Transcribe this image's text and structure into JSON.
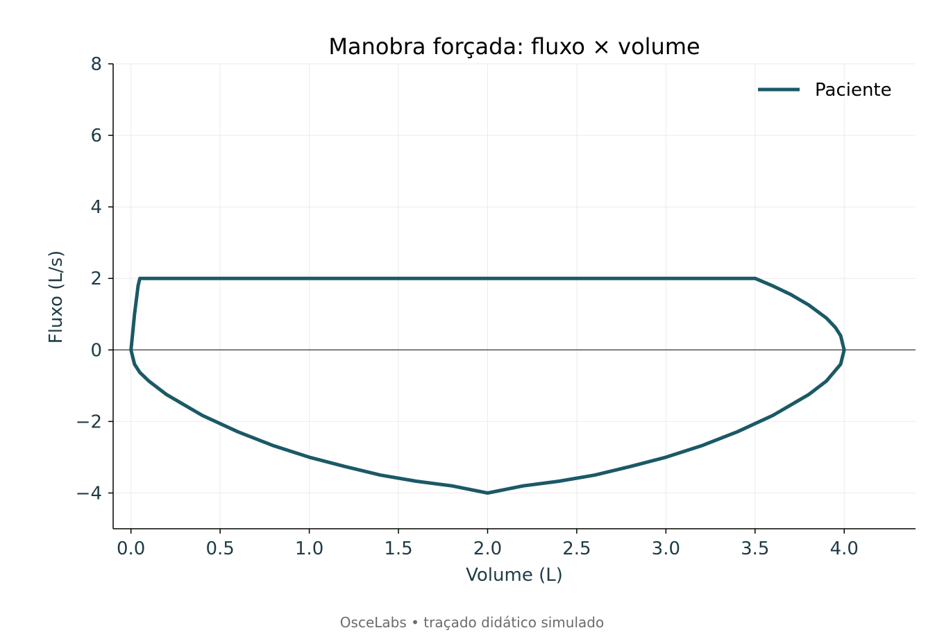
{
  "chart_data": {
    "type": "line",
    "title": "Manobra forçada: fluxo × volume",
    "xlabel": "Volume (L)",
    "ylabel": "Fluxo (L/s)",
    "xlim": [
      -0.1,
      4.4
    ],
    "ylim": [
      -5,
      8
    ],
    "x_ticks": [
      0.0,
      0.5,
      1.0,
      1.5,
      2.0,
      2.5,
      3.0,
      3.5,
      4.0
    ],
    "x_tick_labels": [
      "0.0",
      "0.5",
      "1.0",
      "1.5",
      "2.0",
      "2.5",
      "3.0",
      "3.5",
      "4.0"
    ],
    "y_ticks": [
      -4,
      -2,
      0,
      2,
      4,
      6,
      8
    ],
    "y_tick_labels": [
      "−4",
      "−2",
      "0",
      "2",
      "4",
      "6",
      "8"
    ],
    "grid": true,
    "zero_line": true,
    "legend_position": "top-right",
    "series": [
      {
        "name": "Paciente",
        "color": "#1b5966",
        "x": [
          0.0,
          0.01,
          0.02,
          0.03,
          0.04,
          0.05,
          0.5,
          1.0,
          1.5,
          2.0,
          2.5,
          3.0,
          3.5,
          3.6,
          3.7,
          3.8,
          3.9,
          3.95,
          3.98,
          4.0,
          3.98,
          3.9,
          3.8,
          3.6,
          3.4,
          3.2,
          3.0,
          2.8,
          2.6,
          2.4,
          2.2,
          2.0,
          1.8,
          1.6,
          1.4,
          1.2,
          1.0,
          0.8,
          0.6,
          0.4,
          0.2,
          0.1,
          0.05,
          0.02,
          0.0
        ],
        "y": [
          0.0,
          0.5,
          1.0,
          1.4,
          1.8,
          2.0,
          2.0,
          2.0,
          2.0,
          2.0,
          2.0,
          2.0,
          2.0,
          1.79,
          1.55,
          1.26,
          0.89,
          0.63,
          0.4,
          0.0,
          -0.4,
          -0.87,
          -1.25,
          -1.83,
          -2.29,
          -2.68,
          -3.0,
          -3.26,
          -3.5,
          -3.67,
          -3.8,
          -4.0,
          -3.8,
          -3.67,
          -3.5,
          -3.26,
          -3.0,
          -2.68,
          -2.29,
          -1.83,
          -1.25,
          -0.87,
          -0.63,
          -0.4,
          0.0
        ]
      }
    ]
  },
  "colors": {
    "line": "#1b5966",
    "grid": "#ebebeb",
    "axis": "#000000",
    "zero_line": "#555555",
    "text": "#1f3b46",
    "footer": "#6b6b6b"
  },
  "footer": {
    "text": "OsceLabs • traçado didático simulado"
  }
}
